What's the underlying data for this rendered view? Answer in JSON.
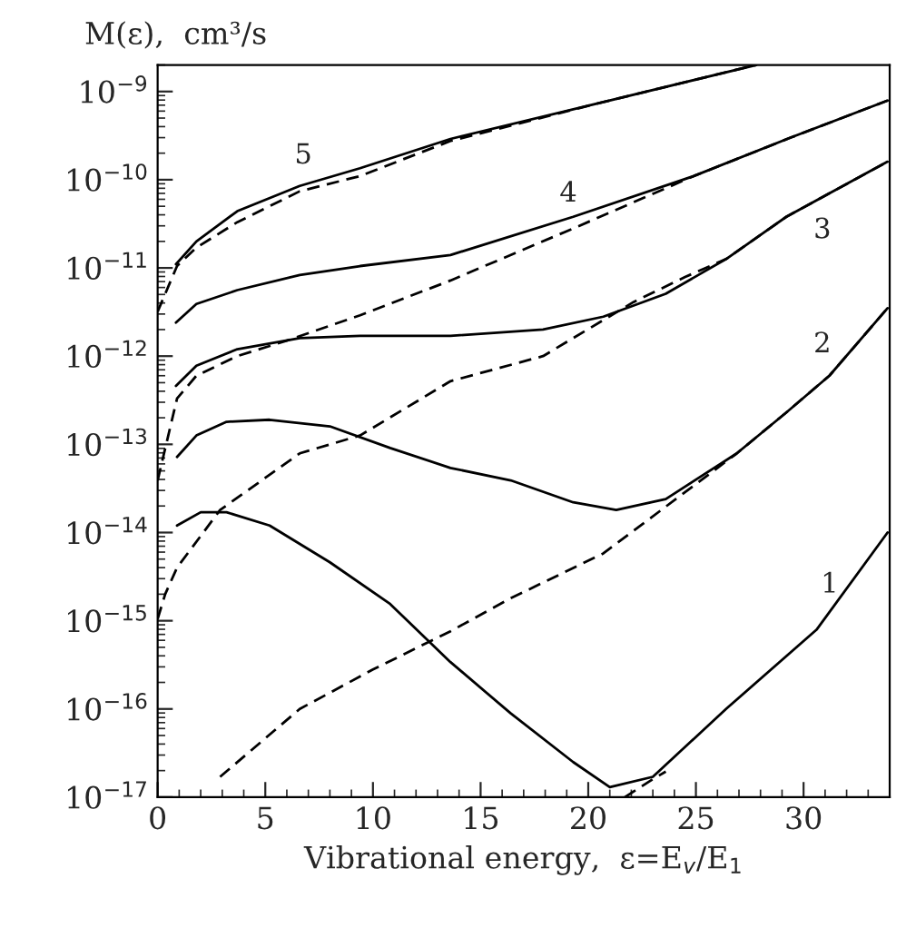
{
  "chart_data": {
    "type": "line",
    "xlabel": "Vibrational energy,  ε=E$_{v}$/E$_{1}$",
    "ylabel": "M(ε),  cm³/s",
    "log": "y",
    "xlim": [
      0,
      34
    ],
    "ylim": [
      1e-17,
      2e-09
    ],
    "xticks": [
      0,
      5,
      10,
      15,
      20,
      25,
      30
    ],
    "yticks": [
      {
        "value": 1e-17,
        "label": "10$^{−17}$"
      },
      {
        "value": 1e-16,
        "label": "10$^{−16}$"
      },
      {
        "value": 1e-15,
        "label": "10$^{−15}$"
      },
      {
        "value": 1e-14,
        "label": "10$^{−14}$"
      },
      {
        "value": 1e-13,
        "label": "10$^{−13}$"
      },
      {
        "value": 1e-12,
        "label": "10$^{−12}$"
      },
      {
        "value": 1e-11,
        "label": "10$^{−11}$"
      },
      {
        "value": 1e-10,
        "label": "10$^{−10}$"
      },
      {
        "value": 1e-09,
        "label": "10$^{−9}$"
      }
    ],
    "grid": false,
    "legend": false,
    "marker": "none",
    "series": [
      {
        "color": "#000000",
        "line_style": "solid",
        "x": [
          0.85,
          1.8,
          3.7,
          6.6,
          9.4,
          13.6,
          20.7,
          27.8
        ],
        "values": [
          1.1e-11,
          2e-11,
          4.4e-11,
          8.5e-11,
          1.35e-10,
          2.9e-10,
          7.6e-10,
          2e-09
        ]
      },
      {
        "color": "#000000",
        "line_style": "dashed",
        "x": [
          0,
          0.9,
          1.8,
          3.7,
          6.6,
          9.4,
          13.6,
          20.7,
          27.8
        ],
        "values": [
          3.2e-12,
          1.05e-11,
          1.7e-11,
          3.3e-11,
          7.4e-11,
          1.1e-10,
          2.75e-10,
          7.6e-10,
          2e-09
        ]
      },
      {
        "color": "#000000",
        "line_style": "solid",
        "x": [
          0.85,
          1.8,
          3.7,
          6.6,
          9.4,
          13.6,
          19.3,
          24.9,
          29.4,
          33.9
        ],
        "values": [
          2.4e-12,
          3.9e-12,
          5.6e-12,
          8.3e-12,
          1.05e-11,
          1.4e-11,
          3.8e-11,
          1.1e-10,
          3e-10,
          7.9e-10
        ]
      },
      {
        "color": "#000000",
        "line_style": "dashed",
        "x": [
          0,
          0.9,
          1.8,
          3.7,
          6.0,
          9.4,
          13.6,
          19.3,
          24.9,
          29.4,
          33.9
        ],
        "values": [
          3.9e-14,
          3.3e-13,
          6e-13,
          1e-12,
          1.5e-12,
          2.9e-12,
          7.2e-12,
          2.8e-11,
          1.1e-10,
          3e-10,
          7.9e-10
        ]
      },
      {
        "color": "#000000",
        "line_style": "solid",
        "x": [
          0.85,
          1.8,
          3.7,
          6.6,
          9.4,
          13.6,
          17.9,
          20.7,
          23.6,
          26.4,
          29.2,
          33.9
        ],
        "values": [
          4.6e-13,
          7.8e-13,
          1.2e-12,
          1.6e-12,
          1.7e-12,
          1.7e-12,
          2e-12,
          2.8e-12,
          5.1e-12,
          1.26e-11,
          3.8e-11,
          1.6e-10
        ]
      },
      {
        "color": "#000000",
        "line_style": "dashed",
        "x": [
          0,
          0.35,
          0.9,
          2.9,
          6.6,
          9.4,
          13.6,
          17.9,
          22.1,
          24.5,
          26.4,
          29.2,
          33.9
        ],
        "values": [
          1.05e-15,
          2e-15,
          4e-15,
          1.8e-14,
          7.9e-14,
          1.26e-13,
          5.2e-13,
          1e-12,
          4.1e-12,
          7.9e-12,
          1.26e-11,
          3.8e-11,
          1.6e-10
        ]
      },
      {
        "color": "#000000",
        "line_style": "solid",
        "x": [
          0.9,
          1.8,
          3.2,
          5.2,
          8.0,
          10.8,
          13.6,
          16.4,
          19.3,
          21.3,
          23.6,
          26.9,
          29.2,
          31.2,
          33.9
        ],
        "values": [
          7.2e-14,
          1.26e-13,
          1.8e-13,
          1.9e-13,
          1.6e-13,
          9.1e-14,
          5.4e-14,
          3.9e-14,
          2.2e-14,
          1.8e-14,
          2.4e-14,
          7.9e-14,
          2.3e-13,
          6e-13,
          3.5e-12
        ]
      },
      {
        "color": "#000000",
        "line_style": "dashed",
        "x": [
          2.9,
          6.6,
          10.0,
          13.6,
          16.4,
          20.7,
          24.9,
          26.9,
          29.2,
          31.2,
          33.9
        ],
        "values": [
          1.7e-17,
          1e-16,
          2.8e-16,
          7.6e-16,
          1.8e-15,
          5.8e-15,
          3.4e-14,
          7.9e-14,
          2.3e-13,
          6e-13,
          3.5e-12
        ]
      },
      {
        "color": "#000000",
        "line_style": "solid",
        "x": [
          0.9,
          2.0,
          3.2,
          5.2,
          8.0,
          10.8,
          13.6,
          16.4,
          19.3,
          21.0,
          23.0,
          26.4,
          30.6,
          33.9
        ],
        "values": [
          1.2e-14,
          1.7e-14,
          1.7e-14,
          1.2e-14,
          4.6e-15,
          1.55e-15,
          3.4e-16,
          8.9e-17,
          2.5e-17,
          1.3e-17,
          1.7e-17,
          1e-16,
          7.9e-16,
          1e-14
        ]
      },
      {
        "color": "#000000",
        "line_style": "dashed",
        "x": [
          21.7,
          23.0,
          23.6
        ],
        "values": [
          1e-17,
          1.6e-17,
          1.95e-17
        ]
      }
    ],
    "annotations": [
      "5",
      "4",
      "3",
      "2",
      "1"
    ]
  }
}
